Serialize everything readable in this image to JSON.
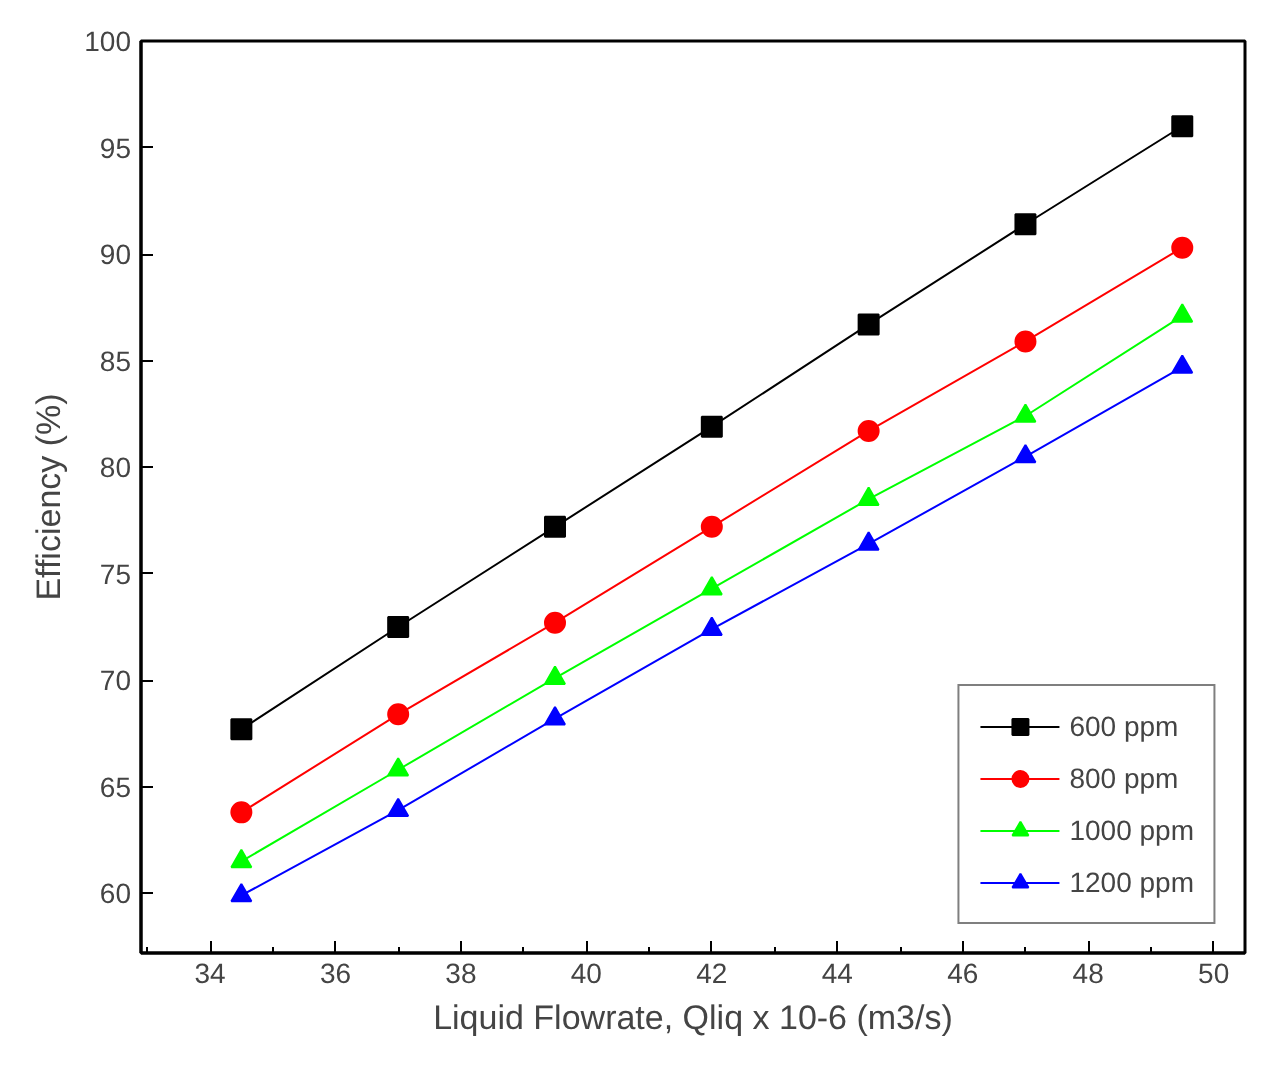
{
  "chart_data": {
    "type": "line",
    "xlabel": "Liquid Flowrate, Qliq x 10-6 (m3/s)",
    "ylabel": "Efficiency (%)",
    "x": [
      34.5,
      37,
      39.5,
      42,
      44.5,
      47,
      49.5
    ],
    "series": [
      {
        "name": "600 ppm",
        "color": "#000000",
        "marker": "square",
        "values": [
          67.7,
          72.5,
          77.2,
          81.9,
          86.7,
          91.4,
          96.0
        ]
      },
      {
        "name": "800 ppm",
        "color": "#ff0000",
        "marker": "circle",
        "values": [
          63.8,
          68.4,
          72.7,
          77.2,
          81.7,
          85.9,
          90.3
        ]
      },
      {
        "name": "1000 ppm",
        "color": "#00ff00",
        "marker": "triangle",
        "values": [
          61.5,
          65.8,
          70.1,
          74.3,
          78.5,
          82.4,
          87.1
        ]
      },
      {
        "name": "1200 ppm",
        "color": "#0000ff",
        "marker": "triangle",
        "values": [
          59.9,
          63.9,
          68.2,
          72.4,
          76.4,
          80.5,
          84.7
        ]
      }
    ],
    "xlim": [
      32.9,
      50.5
    ],
    "ylim": [
      57.2,
      100
    ],
    "xticks": [
      34,
      36,
      38,
      40,
      42,
      44,
      46,
      48,
      50
    ],
    "yticks": [
      60,
      65,
      70,
      75,
      80,
      85,
      90,
      95,
      100
    ],
    "grid": false,
    "legend": "bottom right",
    "line_style": "solid"
  }
}
